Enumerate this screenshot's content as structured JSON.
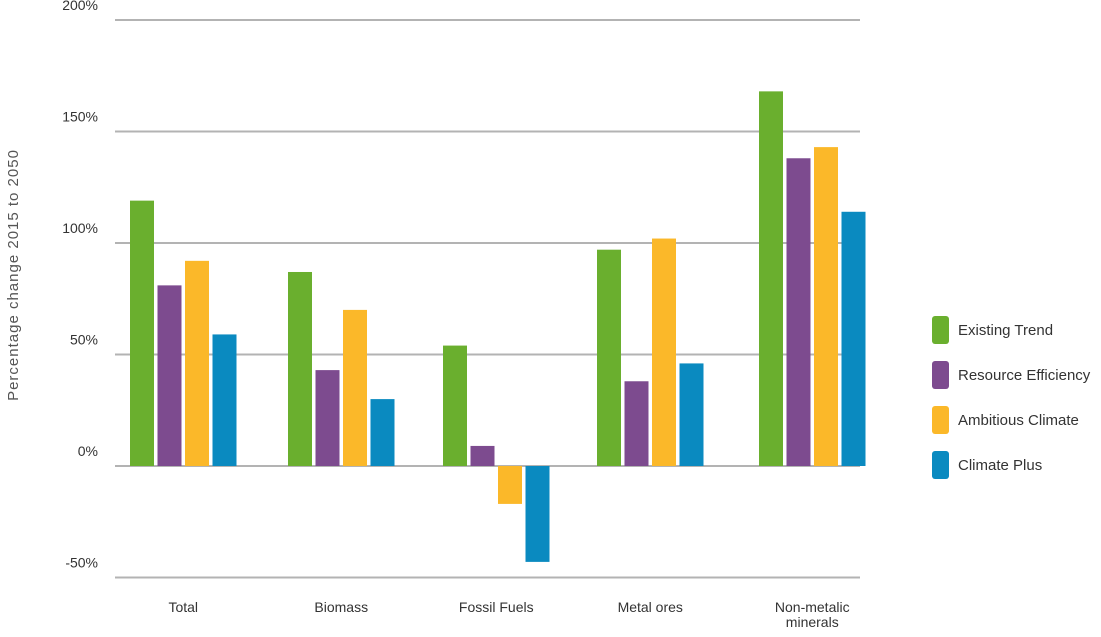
{
  "chart_data": {
    "type": "bar",
    "ylabel": "Percentage change 2015 to 2050",
    "xlabel": "",
    "ylim": [
      -50,
      200
    ],
    "yticks": [
      "200%",
      "150%",
      "100%",
      "50%",
      "0%",
      "-50%"
    ],
    "ytick_values": [
      200,
      150,
      100,
      50,
      0,
      -50
    ],
    "categories": [
      "Total",
      "Biomass",
      "Fossil Fuels",
      "Metal ores",
      "Non-metalic minerals"
    ],
    "series": [
      {
        "name": "Existing Trend",
        "color": "#6aaf2e",
        "values": [
          119,
          87,
          54,
          97,
          168
        ]
      },
      {
        "name": "Resource Efficiency",
        "color": "#7d4b8f",
        "values": [
          81,
          43,
          9,
          38,
          138
        ]
      },
      {
        "name": "Ambitious Climate",
        "color": "#fbb829",
        "values": [
          92,
          70,
          -17,
          102,
          143
        ]
      },
      {
        "name": "Climate Plus",
        "color": "#0a8ac0",
        "values": [
          59,
          30,
          -43,
          46,
          114
        ]
      }
    ],
    "legend_position": "right",
    "grid": true
  }
}
